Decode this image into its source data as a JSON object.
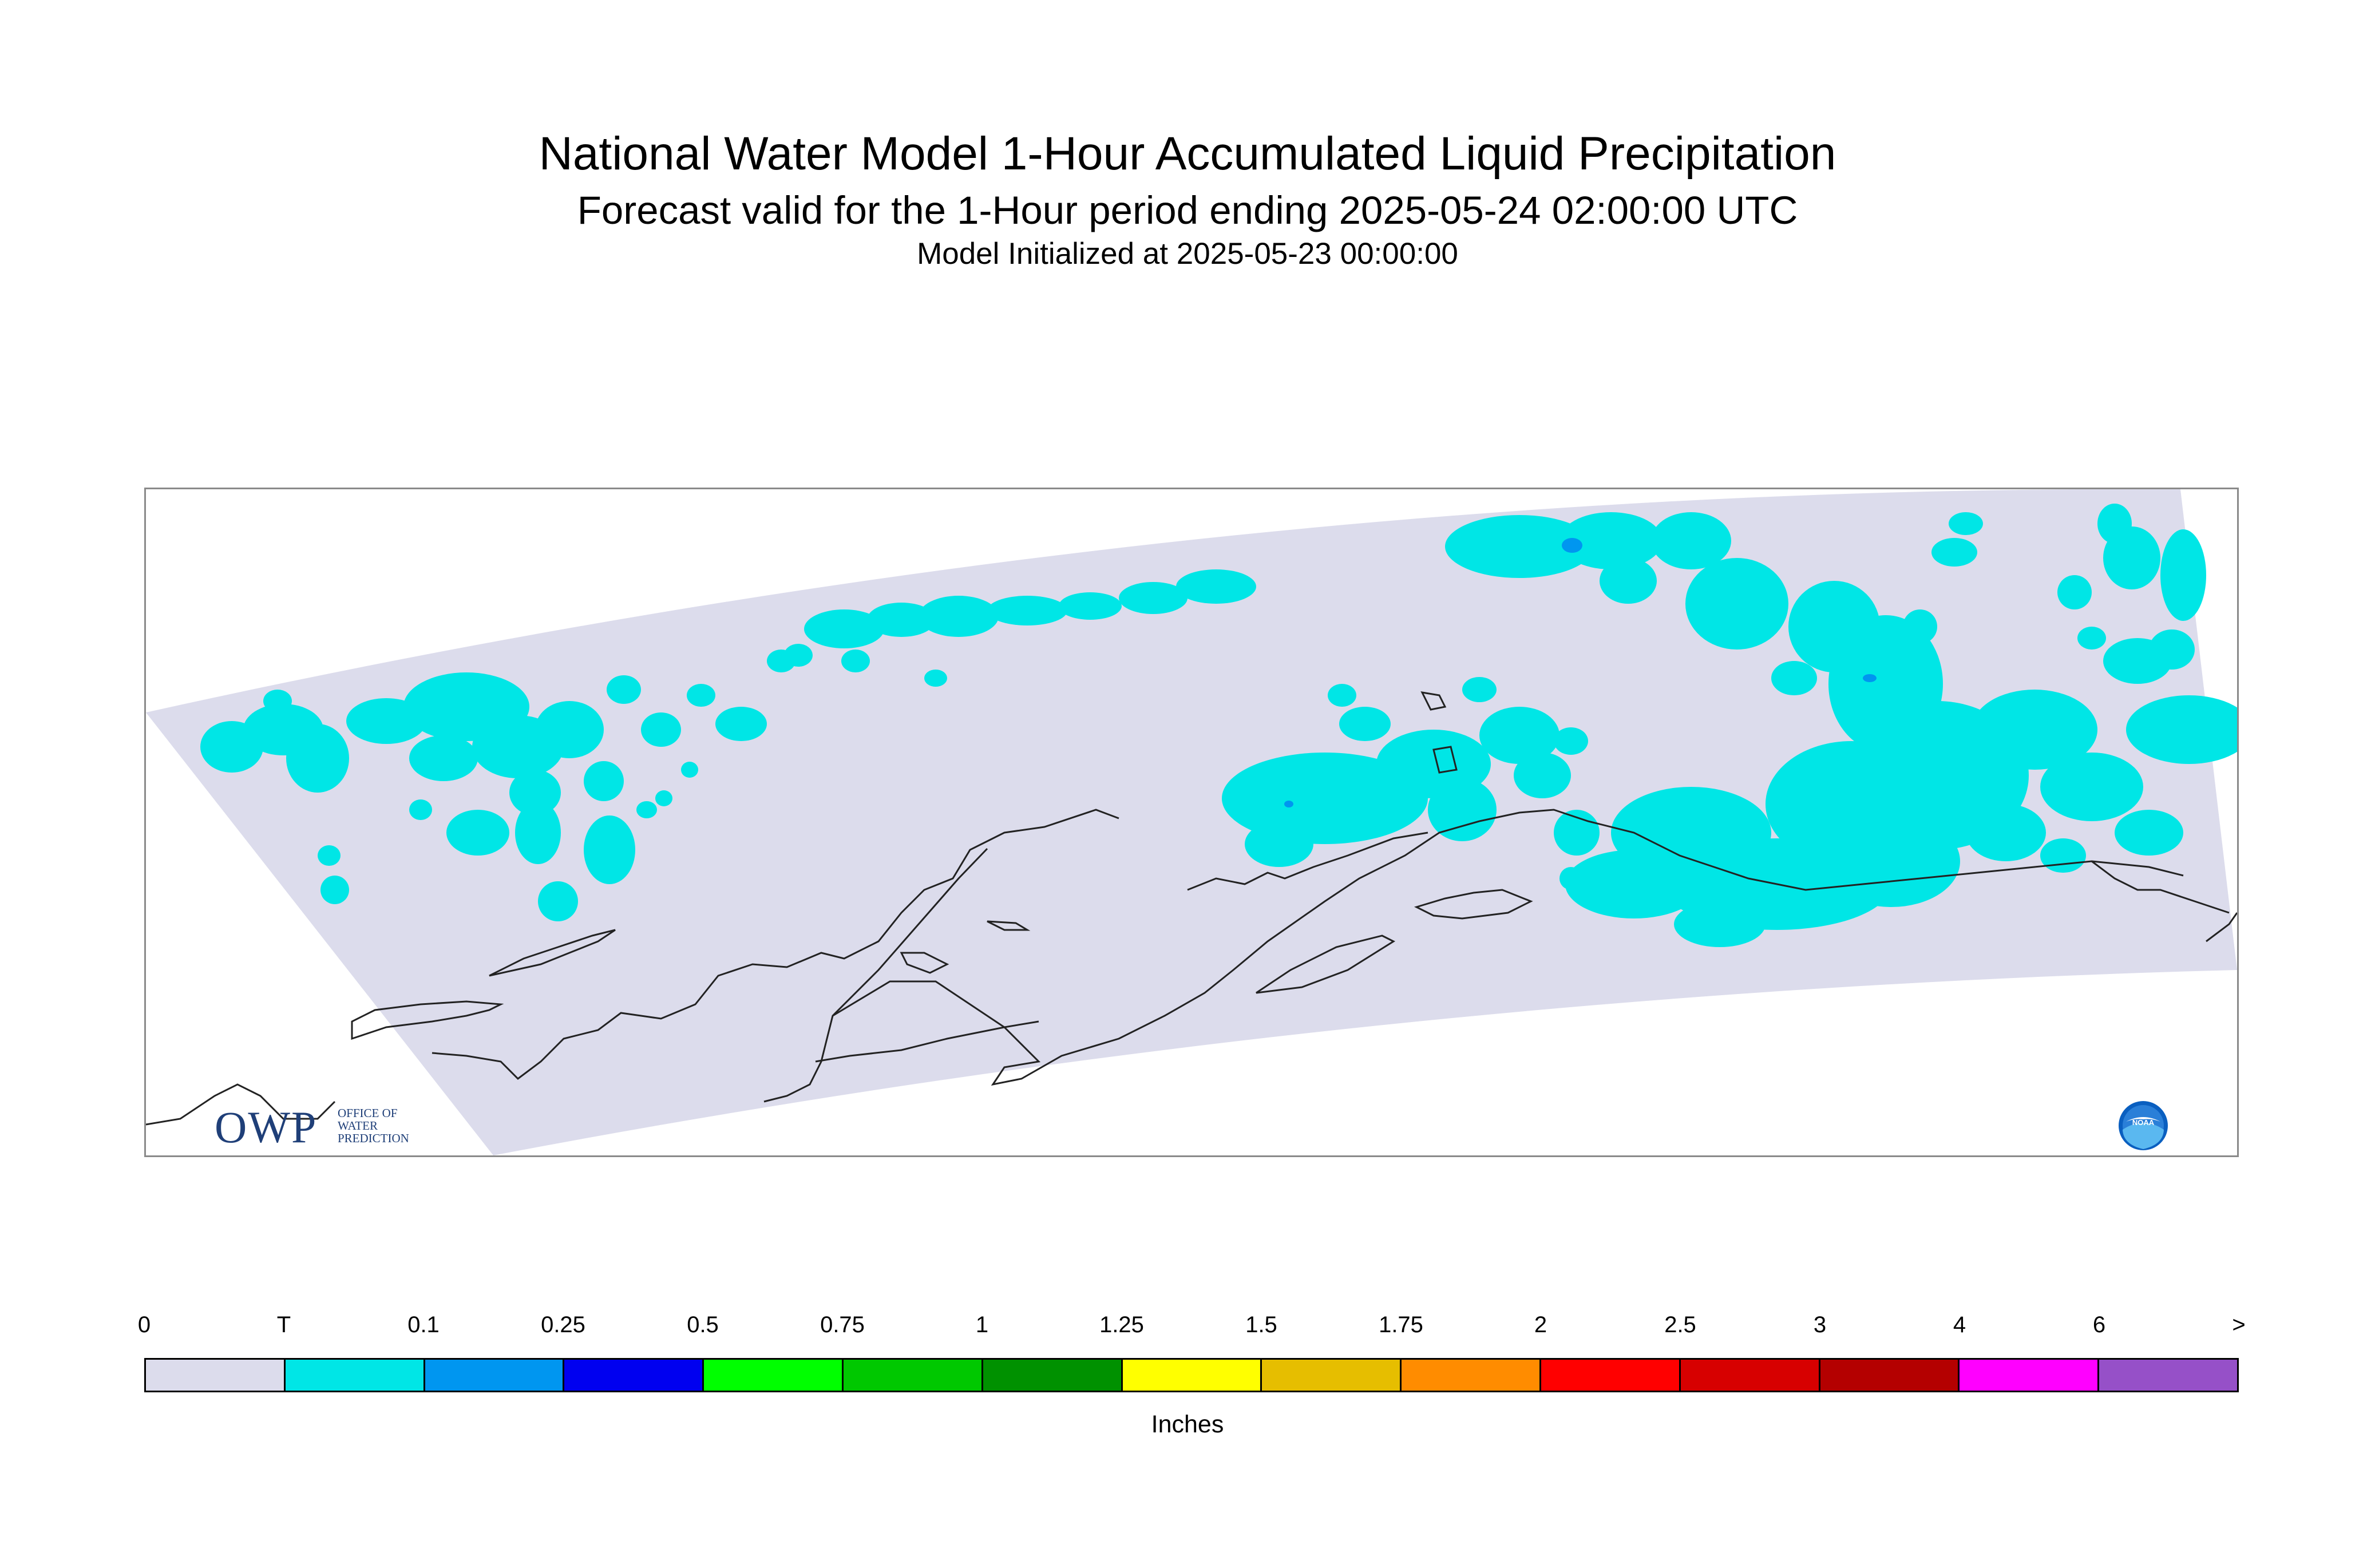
{
  "title": "National Water Model 1-Hour Accumulated Liquid Precipitation",
  "subtitle": "Forecast valid for the 1-Hour period ending 2025-05-24 02:00:00 UTC",
  "initialized": "Model Initialized at 2025-05-23 00:00:00",
  "map": {
    "region": "Alaska",
    "colors": {
      "domain_fill": "#dcdcec",
      "trace_fill": "#00e6e6",
      "light_fill": "#0096f0",
      "coast": "#222222"
    }
  },
  "logos": {
    "owp_big": "OWP",
    "owp_lines": [
      "OFFICE OF",
      "WATER",
      "PREDICTION"
    ],
    "noaa": "NOAA"
  },
  "legend": {
    "units": "Inches",
    "tick_labels": [
      "0",
      "T",
      "0.1",
      "0.25",
      "0.5",
      "0.75",
      "1",
      "1.25",
      "1.5",
      "1.75",
      "2",
      "2.5",
      "3",
      "4",
      "6",
      ">"
    ],
    "colors": [
      "#dcdcec",
      "#00e6e6",
      "#0096f0",
      "#0000f0",
      "#00ff00",
      "#00c800",
      "#009100",
      "#ffff00",
      "#e6be00",
      "#ff8c00",
      "#ff0000",
      "#d70000",
      "#b40000",
      "#ff00ff",
      "#9650c8"
    ]
  }
}
